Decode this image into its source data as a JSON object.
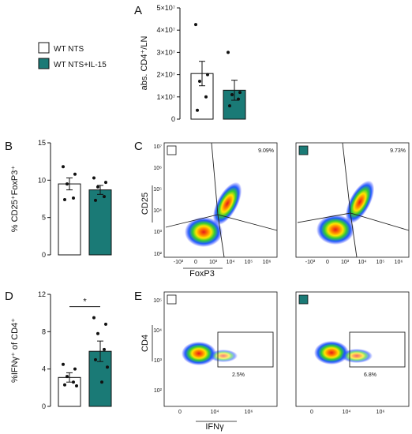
{
  "colors": {
    "wt_nts": "#ffffff",
    "wt_nts_il15": "#1a7a76",
    "axis": "#111111"
  },
  "legend": {
    "items": [
      {
        "label": "WT NTS",
        "color": "#ffffff"
      },
      {
        "label": "WT NTS+IL-15",
        "color": "#1a7a76"
      }
    ]
  },
  "panel_letters": {
    "a": "A",
    "b": "B",
    "c": "C",
    "d": "D",
    "e": "E"
  },
  "chart_data": [
    {
      "panel": "A",
      "type": "bar",
      "ylabel": "abs. CD4⁺/LN",
      "ylim": [
        0,
        50000000.0
      ],
      "yticks": [
        {
          "value": 0,
          "label": "0"
        },
        {
          "value": 10000000.0,
          "label": "1×10⁷"
        },
        {
          "value": 20000000.0,
          "label": "2×10⁷"
        },
        {
          "value": 30000000.0,
          "label": "3×10⁷"
        },
        {
          "value": 40000000.0,
          "label": "4×10⁷"
        },
        {
          "value": 50000000.0,
          "label": "5×10⁷"
        }
      ],
      "series": [
        {
          "group": "WT NTS",
          "color": "#ffffff",
          "mean": 20500000.0,
          "sem": 5500000.0,
          "points": [
            42500000.0,
            20000000.0,
            17000000.0,
            10000000.0,
            4000000.0
          ]
        },
        {
          "group": "WT NTS+IL-15",
          "color": "#1a7a76",
          "mean": 13000000.0,
          "sem": 4500000.0,
          "points": [
            30000000.0,
            12000000.0,
            11000000.0,
            9000000.0,
            6000000.0
          ]
        }
      ]
    },
    {
      "panel": "B",
      "type": "bar",
      "ylabel": "% CD25⁺FoxP3⁺",
      "ylim": [
        0,
        15
      ],
      "yticks": [
        {
          "value": 0,
          "label": "0"
        },
        {
          "value": 5,
          "label": "5"
        },
        {
          "value": 10,
          "label": "10"
        },
        {
          "value": 15,
          "label": "15"
        }
      ],
      "series": [
        {
          "group": "WT NTS",
          "color": "#ffffff",
          "mean": 9.5,
          "sem": 0.8,
          "points": [
            11.8,
            10.8,
            9.5,
            7.6,
            7.4
          ]
        },
        {
          "group": "WT NTS+IL-15",
          "color": "#1a7a76",
          "mean": 8.7,
          "sem": 0.6,
          "points": [
            10.3,
            9.7,
            9.1,
            7.8,
            7.3
          ]
        }
      ]
    },
    {
      "panel": "D",
      "type": "bar",
      "ylabel": "%IFNγ⁺ of CD4⁺",
      "ylim": [
        0,
        12
      ],
      "yticks": [
        {
          "value": 0,
          "label": "0"
        },
        {
          "value": 4,
          "label": "4"
        },
        {
          "value": 8,
          "label": "8"
        },
        {
          "value": 12,
          "label": "12"
        }
      ],
      "significance": "*",
      "series": [
        {
          "group": "WT NTS",
          "color": "#ffffff",
          "mean": 3.1,
          "sem": 0.5,
          "points": [
            4.5,
            4.0,
            3.2,
            2.6,
            2.3,
            2.2
          ]
        },
        {
          "group": "WT NTS+IL-15",
          "color": "#1a7a76",
          "mean": 5.9,
          "sem": 1.1,
          "points": [
            9.5,
            8.8,
            7.8,
            6.1,
            5.0,
            4.2,
            2.6
          ]
        }
      ]
    },
    {
      "panel": "C",
      "type": "scatter",
      "ylabel": "CD25",
      "xlabel": "FoxP3",
      "yticks": [
        "10²",
        "10³",
        "10⁴",
        "10⁵",
        "10⁶",
        "10⁷"
      ],
      "xticks": [
        "-10³",
        "0",
        "10³",
        "10⁴",
        "10⁵",
        "10⁶"
      ],
      "plots": [
        {
          "group": "WT NTS",
          "color": "#ffffff",
          "gate_percent": "9.09%"
        },
        {
          "group": "WT NTS+IL-15",
          "color": "#1a7a76",
          "gate_percent": "9.73%"
        }
      ]
    },
    {
      "panel": "E",
      "type": "scatter",
      "ylabel": "CD4",
      "xlabel": "IFNγ",
      "yticks": [
        "10²",
        "10³",
        "10⁴",
        "10⁵"
      ],
      "xticks": [
        "0",
        "10⁴",
        "10⁶"
      ],
      "plots": [
        {
          "group": "WT NTS",
          "color": "#ffffff",
          "gate_percent": "2.5%"
        },
        {
          "group": "WT NTS+IL-15",
          "color": "#1a7a76",
          "gate_percent": "6.8%"
        }
      ]
    }
  ]
}
